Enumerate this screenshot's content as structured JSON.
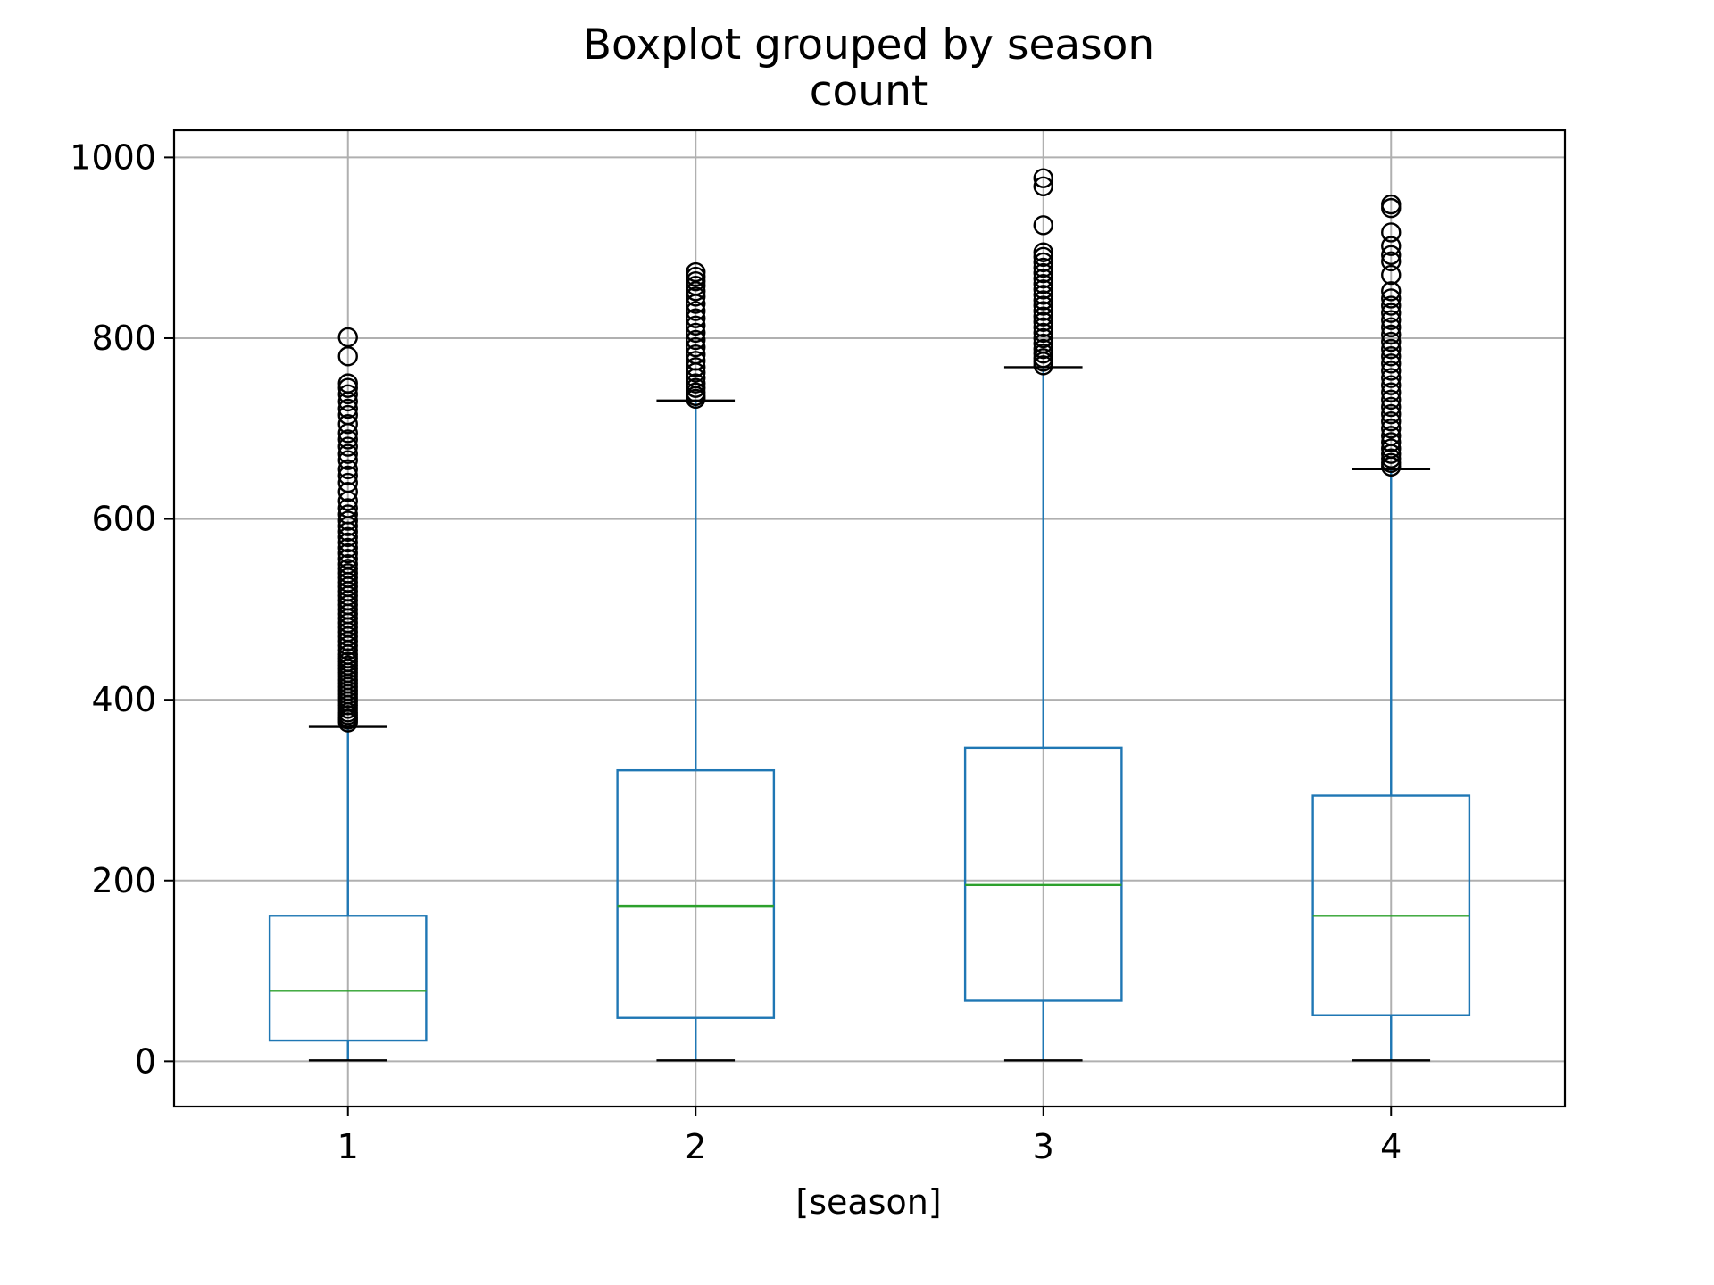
{
  "chart_data": {
    "type": "boxplot",
    "title": "Boxplot grouped by season",
    "subtitle": "count",
    "xlabel": "[season]",
    "ylabel": "",
    "ylim": [
      -50,
      1030
    ],
    "xlim": [
      0.5,
      4.5
    ],
    "grid": true,
    "y_ticks": [
      0,
      200,
      400,
      600,
      800,
      1000
    ],
    "categories": [
      "1",
      "2",
      "3",
      "4"
    ],
    "colors": {
      "box": "#1f77b4",
      "median": "#2ca02c",
      "caps": "#000000",
      "flier": "#000000",
      "grid": "#b0b0b0"
    },
    "boxes": [
      {
        "category": "1",
        "whisker_low": 1,
        "q1": 23,
        "median": 78,
        "q3": 161,
        "whisker_high": 370,
        "outliers": [
          375,
          378,
          380,
          383,
          386,
          390,
          394,
          398,
          402,
          406,
          410,
          414,
          418,
          422,
          426,
          430,
          434,
          438,
          442,
          446,
          450,
          455,
          460,
          465,
          470,
          475,
          480,
          485,
          490,
          495,
          500,
          505,
          510,
          515,
          520,
          525,
          530,
          535,
          540,
          545,
          550,
          556,
          562,
          568,
          574,
          580,
          586,
          592,
          598,
          605,
          612,
          620,
          630,
          640,
          648,
          655,
          665,
          672,
          680,
          688,
          695,
          705,
          715,
          722,
          730,
          738,
          745,
          750,
          780,
          801
        ]
      },
      {
        "category": "2",
        "whisker_low": 1,
        "q1": 48,
        "median": 172,
        "q3": 322,
        "whisker_high": 731,
        "outliers": [
          733,
          736,
          740,
          745,
          750,
          756,
          762,
          768,
          775,
          782,
          790,
          798,
          806,
          814,
          822,
          830,
          838,
          846,
          852,
          858,
          863,
          868,
          873
        ]
      },
      {
        "category": "3",
        "whisker_low": 1,
        "q1": 67,
        "median": 195,
        "q3": 347,
        "whisker_high": 768,
        "outliers": [
          770,
          774,
          778,
          783,
          788,
          794,
          800,
          806,
          812,
          818,
          824,
          830,
          836,
          842,
          848,
          854,
          860,
          866,
          872,
          878,
          884,
          890,
          895,
          925,
          968,
          977
        ]
      },
      {
        "category": "4",
        "whisker_low": 1,
        "q1": 51,
        "median": 161,
        "q3": 294,
        "whisker_high": 655,
        "outliers": [
          658,
          662,
          667,
          672,
          678,
          685,
          692,
          700,
          708,
          716,
          724,
          732,
          740,
          748,
          756,
          764,
          772,
          780,
          788,
          796,
          804,
          812,
          820,
          828,
          836,
          844,
          852,
          870,
          885,
          892,
          902,
          917,
          944,
          948
        ]
      }
    ]
  }
}
